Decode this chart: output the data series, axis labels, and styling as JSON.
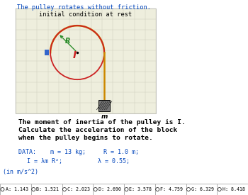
{
  "title": "The pulley rotates without friction.",
  "diagram_title": "initial condition at rest",
  "bg_color": "#f8f8f0",
  "panel_bg": "#eeeedd",
  "text_body1": "The moment of inertia of the pulley is I.",
  "text_body2": "Calculate the acceleration of the block",
  "text_body3": "when the pulley begins to rotate.",
  "data_line1": "DATA:    m = 13 kg;     R = 1.0 m;",
  "data_line2": "I = λm R²;          λ = 0.55;",
  "units": "(in m/s^2)",
  "answers": [
    "A: 1.143",
    "B: 1.521",
    "C: 2.023",
    "D: 2.690",
    "E: 3.578",
    "F: 4.759",
    "G: 6.329",
    "H: 8.418"
  ],
  "circle_color": "#cc2222",
  "arc_color": "#cc8800",
  "R_label_color": "#228822",
  "I_label_color": "#cc2222",
  "rope_color": "#cc8800",
  "answer_bg": "#ffffff",
  "answer_border": "#aaaaaa",
  "title_color": "#0044bb",
  "units_color": "#0044bb",
  "data_color": "#0044bb",
  "panel_border": "#aaaaaa",
  "grid_color": "#ccccbb"
}
